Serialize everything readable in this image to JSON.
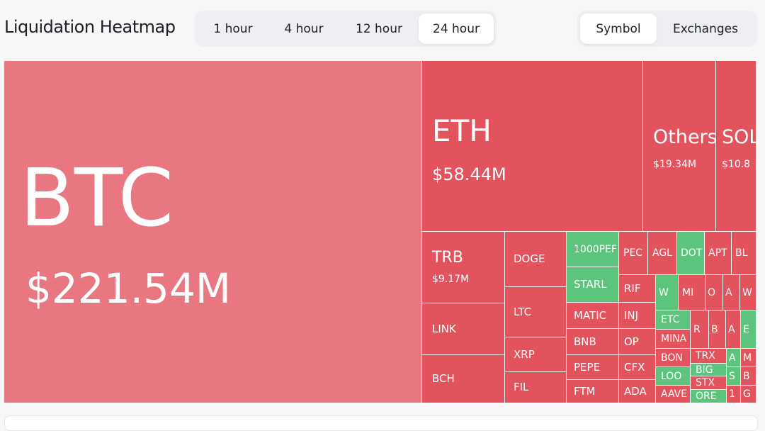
{
  "header": {
    "title": "Liquidation Heatmap",
    "time_tabs": [
      "1 hour",
      "4 hour",
      "12 hour",
      "24 hour"
    ],
    "active_time_tab": 3,
    "view_tabs": [
      "Symbol",
      "Exchanges"
    ],
    "active_view_tab": 0
  },
  "heatmap": {
    "tiles": [
      {
        "label": "BTC",
        "value": "$221.54M",
        "color": "#e97782"
      },
      {
        "label": "ETH",
        "value": "$58.44M",
        "color": "#e2535e"
      },
      {
        "label": "Others",
        "value": "$19.34M",
        "color": "#e2535e"
      },
      {
        "label": "SOL",
        "value": "$10.8",
        "color": "#e2535e"
      },
      {
        "label": "TRB",
        "value": "$9.17M",
        "color": "#e2535e"
      },
      {
        "label": "LINK",
        "color": "#e2535e"
      },
      {
        "label": "BCH",
        "color": "#e2535e"
      },
      {
        "label": "DOGE",
        "color": "#e2535e"
      },
      {
        "label": "LTC",
        "color": "#e2535e"
      },
      {
        "label": "XRP",
        "color": "#e2535e"
      },
      {
        "label": "FIL",
        "color": "#e2535e"
      },
      {
        "label": "1000PEF",
        "color": "#5cc47d"
      },
      {
        "label": "STARL",
        "color": "#5cc47d"
      },
      {
        "label": "MATIC",
        "color": "#e2535e"
      },
      {
        "label": "BNB",
        "color": "#e2535e"
      },
      {
        "label": "PEPE",
        "color": "#e2535e"
      },
      {
        "label": "FTM",
        "color": "#e2535e"
      },
      {
        "label": "PEC",
        "color": "#e2535e"
      },
      {
        "label": "RIF",
        "color": "#e2535e"
      },
      {
        "label": "INJ",
        "color": "#e2535e"
      },
      {
        "label": "OP",
        "color": "#e2535e"
      },
      {
        "label": "CFX",
        "color": "#e2535e"
      },
      {
        "label": "ADA",
        "color": "#e2535e"
      },
      {
        "label": "AGL",
        "color": "#e2535e"
      },
      {
        "label": "DOT",
        "color": "#5cc47d"
      },
      {
        "label": "APT",
        "color": "#e2535e"
      },
      {
        "label": "BL",
        "color": "#e2535e"
      },
      {
        "label": "W",
        "color": "#5cc47d"
      },
      {
        "label": "MI",
        "color": "#e2535e"
      },
      {
        "label": "O",
        "color": "#e2535e"
      },
      {
        "label": "A",
        "color": "#e2535e"
      },
      {
        "label": "W",
        "color": "#e2535e"
      },
      {
        "label": "ETC",
        "color": "#5cc47d"
      },
      {
        "label": "MINA",
        "color": "#e2535e"
      },
      {
        "label": "BON",
        "color": "#e2535e"
      },
      {
        "label": "LOO",
        "color": "#5cc47d"
      },
      {
        "label": "AAVE",
        "color": "#e2535e"
      },
      {
        "label": "R",
        "color": "#e2535e"
      },
      {
        "label": "B",
        "color": "#e2535e"
      },
      {
        "label": "A",
        "color": "#e2535e"
      },
      {
        "label": "E",
        "color": "#5cc47d"
      },
      {
        "label": "TRX",
        "color": "#e2535e"
      },
      {
        "label": "BIG",
        "color": "#5cc47d"
      },
      {
        "label": "STX",
        "color": "#e2535e"
      },
      {
        "label": "ORE",
        "color": "#5cc47d"
      },
      {
        "label": "A",
        "color": "#5cc47d"
      },
      {
        "label": "M",
        "color": "#e2535e"
      },
      {
        "label": "S",
        "color": "#5cc47d"
      },
      {
        "label": "B",
        "color": "#e2535e"
      },
      {
        "label": "1",
        "color": "#e2535e"
      },
      {
        "label": "G",
        "color": "#e2535e"
      }
    ]
  }
}
